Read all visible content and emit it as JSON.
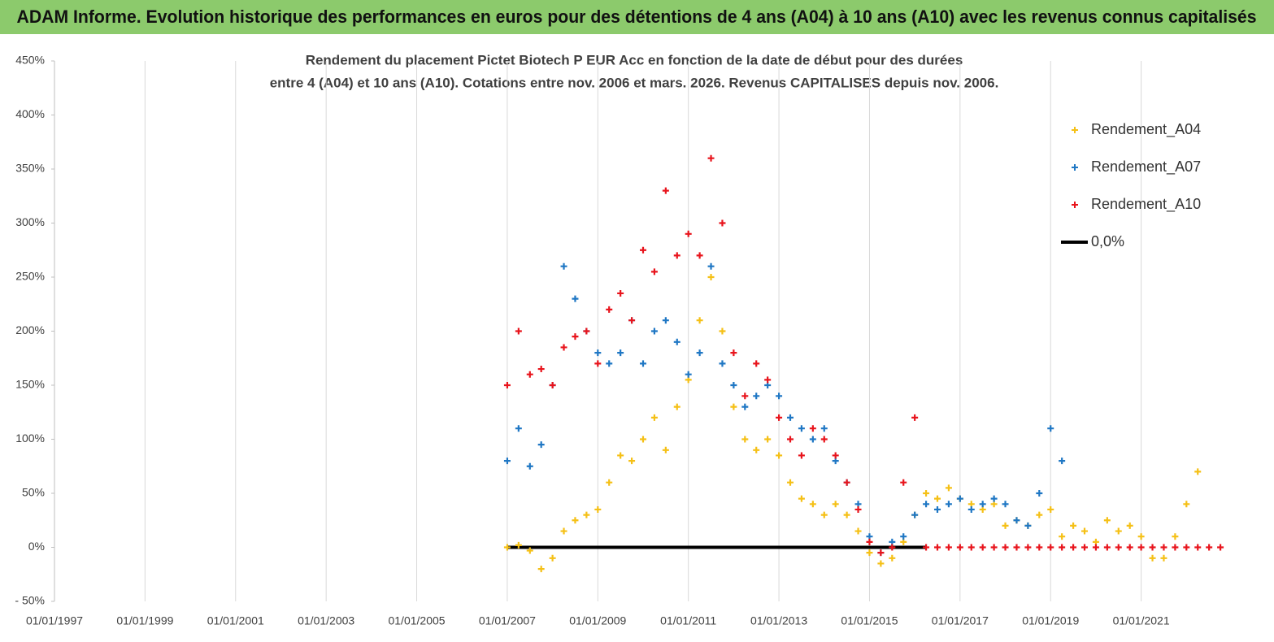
{
  "header": "ADAM Informe. Evolution historique des performances en euros pour des détentions de 4 ans (A04) à 10 ans (A10) avec les revenus connus capitalisés",
  "chart_data": {
    "type": "scatter",
    "title": [
      "Rendement du placement Pictet Biotech P EUR Acc en fonction de la date de début pour des durées",
      "entre 4 (A04) et 10 ans (A10).  Cotations entre nov. 2006 et mars. 2026. Revenus CAPITALISES depuis nov. 2006."
    ],
    "xlim": [
      1997,
      2023
    ],
    "ylim": [
      -50,
      450
    ],
    "xticks": [
      {
        "value": 1997,
        "label": "01/01/1997"
      },
      {
        "value": 1999,
        "label": "01/01/1999"
      },
      {
        "value": 2001,
        "label": "01/01/2001"
      },
      {
        "value": 2003,
        "label": "01/01/2003"
      },
      {
        "value": 2005,
        "label": "01/01/2005"
      },
      {
        "value": 2007,
        "label": "01/01/2007"
      },
      {
        "value": 2009,
        "label": "01/01/2009"
      },
      {
        "value": 2011,
        "label": "01/01/2011"
      },
      {
        "value": 2013,
        "label": "01/01/2013"
      },
      {
        "value": 2015,
        "label": "01/01/2015"
      },
      {
        "value": 2017,
        "label": "01/01/2017"
      },
      {
        "value": 2019,
        "label": "01/01/2019"
      },
      {
        "value": 2021,
        "label": "01/01/2021"
      }
    ],
    "yticks": [
      {
        "value": -50,
        "label": "- 50%"
      },
      {
        "value": 0,
        "label": "0%"
      },
      {
        "value": 50,
        "label": "50%"
      },
      {
        "value": 100,
        "label": "100%"
      },
      {
        "value": 150,
        "label": "150%"
      },
      {
        "value": 200,
        "label": "200%"
      },
      {
        "value": 250,
        "label": "250%"
      },
      {
        "value": 300,
        "label": "300%"
      },
      {
        "value": 350,
        "label": "350%"
      },
      {
        "value": 400,
        "label": "400%"
      },
      {
        "value": 450,
        "label": "450%"
      }
    ],
    "grid": "x",
    "legend": "top-right",
    "series": [
      {
        "name": "Rendement_A04",
        "color": "#f5c016",
        "style": "marker",
        "x": [
          2007,
          2007.25,
          2007.5,
          2007.75,
          2008,
          2008.25,
          2008.5,
          2008.75,
          2009,
          2009.25,
          2009.5,
          2009.75,
          2010,
          2010.25,
          2010.5,
          2010.75,
          2011,
          2011.25,
          2011.5,
          2011.75,
          2012,
          2012.25,
          2012.5,
          2012.75,
          2013,
          2013.25,
          2013.5,
          2013.75,
          2014,
          2014.25,
          2014.5,
          2014.75,
          2015,
          2015.25,
          2015.5,
          2015.75,
          2016,
          2016.25,
          2016.5,
          2016.75,
          2017,
          2017.25,
          2017.5,
          2017.75,
          2018,
          2018.25,
          2018.5,
          2018.75,
          2019,
          2019.25,
          2019.5,
          2019.75,
          2020,
          2020.25,
          2020.5,
          2020.75,
          2021,
          2021.25,
          2021.5,
          2021.75,
          2022,
          2022.25
        ],
        "values": [
          0,
          2,
          -3,
          -20,
          -10,
          15,
          25,
          30,
          35,
          60,
          85,
          80,
          100,
          120,
          90,
          130,
          155,
          210,
          250,
          200,
          130,
          100,
          90,
          100,
          85,
          60,
          45,
          40,
          30,
          40,
          30,
          15,
          -5,
          -15,
          -10,
          5,
          30,
          50,
          45,
          55,
          45,
          40,
          35,
          40,
          20,
          25,
          20,
          30,
          35,
          10,
          20,
          15,
          5,
          25,
          15,
          20,
          10,
          -10,
          -10,
          10,
          40,
          70
        ]
      },
      {
        "name": "Rendement_A07",
        "color": "#1f77c4",
        "style": "marker",
        "x": [
          2007,
          2007.25,
          2007.5,
          2007.75,
          2008,
          2008.25,
          2008.5,
          2008.75,
          2009,
          2009.25,
          2009.5,
          2009.75,
          2010,
          2010.25,
          2010.5,
          2010.75,
          2011,
          2011.25,
          2011.5,
          2011.75,
          2012,
          2012.25,
          2012.5,
          2012.75,
          2013,
          2013.25,
          2013.5,
          2013.75,
          2014,
          2014.25,
          2014.5,
          2014.75,
          2015,
          2015.25,
          2015.5,
          2015.75,
          2016,
          2016.25,
          2016.5,
          2016.75,
          2017,
          2017.25,
          2017.5,
          2017.75,
          2018,
          2018.25,
          2018.5,
          2018.75,
          2019,
          2019.25
        ],
        "values": [
          80,
          110,
          75,
          95,
          150,
          260,
          230,
          200,
          180,
          170,
          180,
          210,
          170,
          200,
          210,
          190,
          160,
          180,
          260,
          170,
          150,
          130,
          140,
          150,
          140,
          120,
          110,
          100,
          110,
          80,
          60,
          40,
          10,
          -5,
          5,
          10,
          30,
          40,
          35,
          40,
          45,
          35,
          40,
          45,
          40,
          25,
          20,
          50,
          110,
          80
        ]
      },
      {
        "name": "Rendement_A10",
        "color": "#e8141c",
        "style": "marker",
        "x": [
          2007,
          2007.25,
          2007.5,
          2007.75,
          2008,
          2008.25,
          2008.5,
          2008.75,
          2009,
          2009.25,
          2009.5,
          2009.75,
          2010,
          2010.25,
          2010.5,
          2010.75,
          2011,
          2011.25,
          2011.5,
          2011.75,
          2012,
          2012.25,
          2012.5,
          2012.75,
          2013,
          2013.25,
          2013.5,
          2013.75,
          2014,
          2014.25,
          2014.5,
          2014.75,
          2015,
          2015.25,
          2015.5,
          2015.75,
          2016,
          2016.25,
          2016.5,
          2016.75,
          2017,
          2017.25,
          2017.5,
          2017.75,
          2018,
          2018.25,
          2018.5,
          2018.75,
          2019,
          2019.25,
          2019.5,
          2019.75,
          2020,
          2020.25,
          2020.5,
          2020.75,
          2021,
          2021.25,
          2021.5,
          2021.75,
          2022,
          2022.25,
          2022.5,
          2022.75
        ],
        "values": [
          150,
          200,
          160,
          165,
          150,
          185,
          195,
          200,
          170,
          220,
          235,
          210,
          275,
          255,
          330,
          270,
          290,
          270,
          360,
          300,
          180,
          140,
          170,
          155,
          120,
          100,
          85,
          110,
          100,
          85,
          60,
          35,
          5,
          -5,
          0,
          60,
          120,
          0,
          0,
          0,
          0,
          0,
          0,
          0,
          0,
          0,
          0,
          0,
          0,
          0,
          0,
          0,
          0,
          0,
          0,
          0,
          0,
          0,
          0,
          0,
          0,
          0,
          0,
          0
        ]
      },
      {
        "name": "0,0%",
        "color": "#000000",
        "style": "line",
        "x": [
          2007,
          2016.25
        ],
        "values": [
          0,
          0
        ]
      }
    ]
  }
}
